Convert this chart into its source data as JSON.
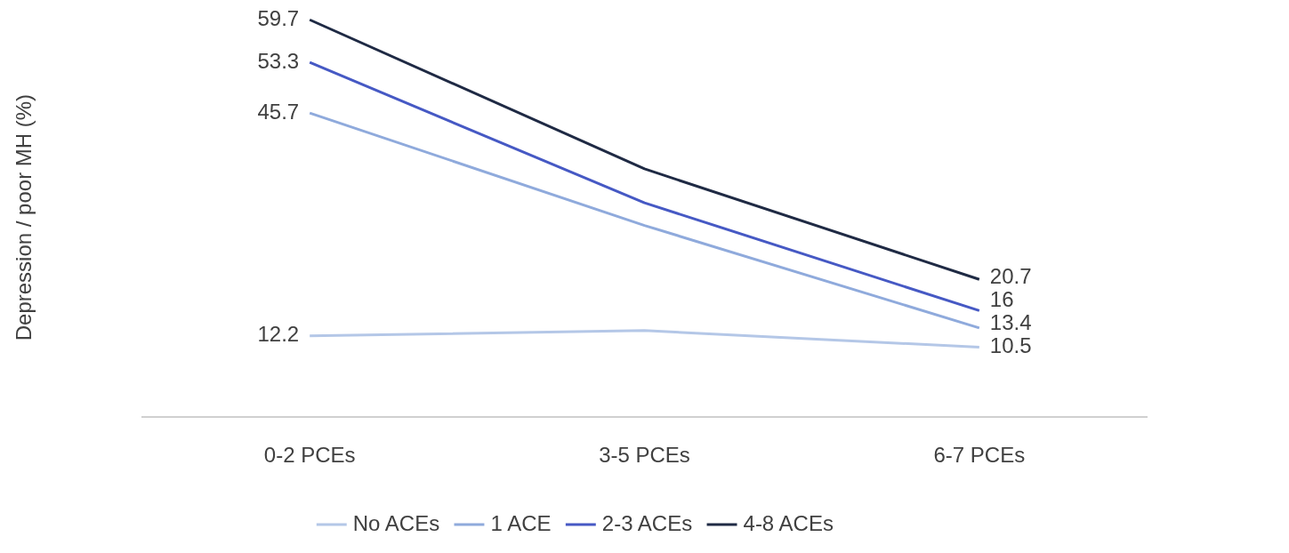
{
  "chart_data": {
    "type": "line",
    "ylabel": "Depression / poor MH (%)",
    "categories": [
      "0-2 PCEs",
      "3-5 PCEs",
      "6-7 PCEs"
    ],
    "series": [
      {
        "name": "No ACEs",
        "color": "#b4c7e7",
        "values": [
          12.2,
          13,
          10.5
        ],
        "value_labels": [
          "12.2",
          null,
          "10.5"
        ]
      },
      {
        "name": "1 ACE",
        "color": "#8faadc",
        "values": [
          45.7,
          28.8,
          13.4
        ],
        "value_labels": [
          "45.7",
          null,
          "13.4"
        ]
      },
      {
        "name": "2-3 ACEs",
        "color": "#4659c4",
        "values": [
          53.3,
          32.2,
          16
        ],
        "value_labels": [
          "53.3",
          null,
          "16"
        ]
      },
      {
        "name": "4-8 ACEs",
        "color": "#1f2a44",
        "values": [
          59.7,
          37.3,
          20.7
        ],
        "value_labels": [
          "59.7",
          null,
          "20.7"
        ]
      }
    ],
    "grid": false,
    "legend": "bottom",
    "marker": "none",
    "line_style": "solid"
  }
}
